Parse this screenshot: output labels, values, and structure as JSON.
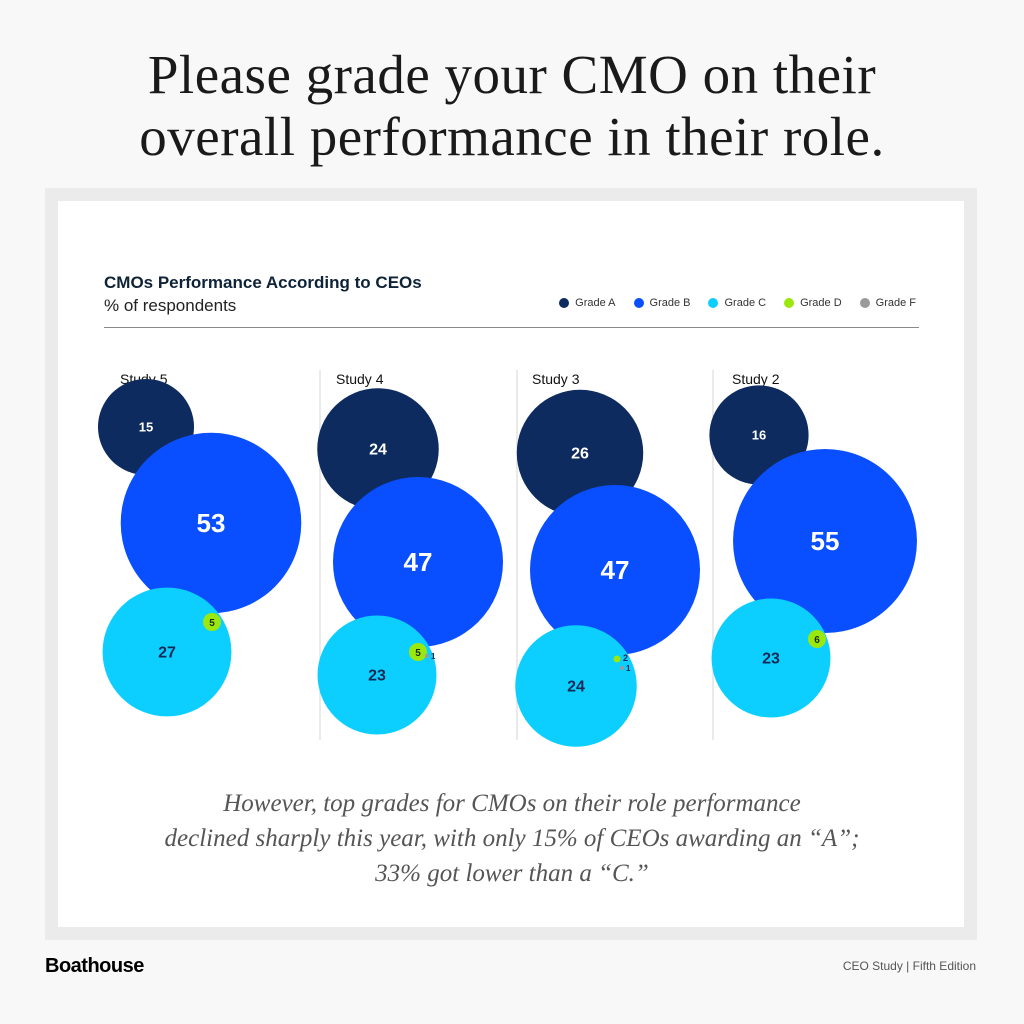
{
  "headline": {
    "line1": "Please grade your CMO on their",
    "line2": "overall performance in their role."
  },
  "chart_data": {
    "type": "bubble",
    "title": "CMOs Performance According to CEOs",
    "subtitle": "% of respondents",
    "legend_position": "top-right",
    "legend": [
      {
        "name": "Grade A",
        "color": "#0d2b5e"
      },
      {
        "name": "Grade B",
        "color": "#0a4fff"
      },
      {
        "name": "Grade C",
        "color": "#0dcfff"
      },
      {
        "name": "Grade D",
        "color": "#9be80e"
      },
      {
        "name": "Grade F",
        "color": "#9a9a9a"
      }
    ],
    "categories": [
      "Study 5",
      "Study 4",
      "Study 3",
      "Study 2"
    ],
    "series": [
      {
        "name": "Grade A",
        "values": [
          15,
          24,
          26,
          16
        ]
      },
      {
        "name": "Grade B",
        "values": [
          53,
          47,
          47,
          55
        ]
      },
      {
        "name": "Grade C",
        "values": [
          27,
          23,
          24,
          23
        ]
      },
      {
        "name": "Grade D",
        "values": [
          5,
          5,
          2,
          6
        ]
      },
      {
        "name": "Grade F",
        "values": [
          null,
          1,
          1,
          null
        ]
      }
    ]
  },
  "caption": {
    "line1": "However, top grades for CMOs on their role performance",
    "line2": "declined sharply this year, with only 15% of CEOs awarding an “A”;",
    "line3": "33% got lower than a “C.”"
  },
  "footer": {
    "brand": "Boathouse",
    "edition": "CEO Study | Fifth Edition"
  }
}
